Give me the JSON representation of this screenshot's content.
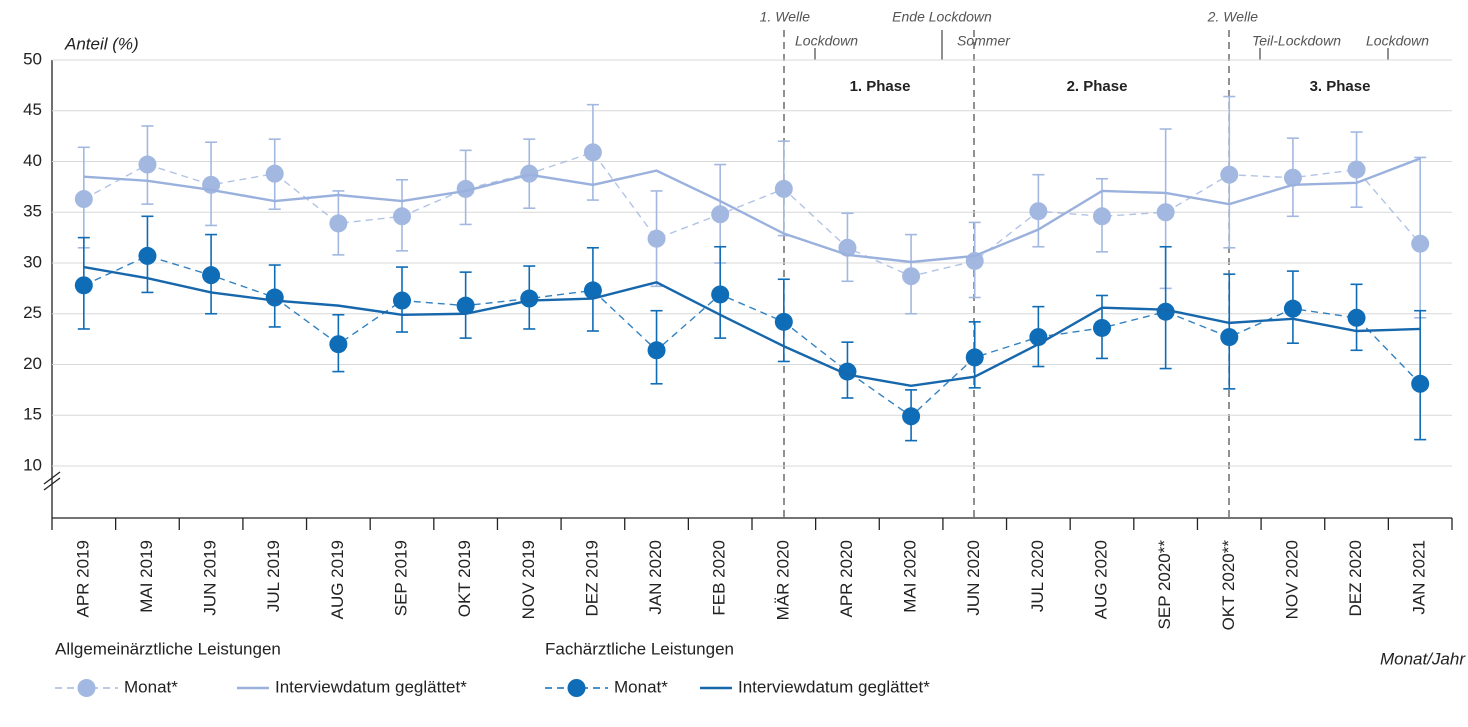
{
  "chart_data": {
    "type": "line",
    "y_label": "Anteil (%)",
    "x_label": "Monat/Jahr",
    "categories": [
      "APR 2019",
      "MAI 2019",
      "JUN 2019",
      "JUL 2019",
      "AUG 2019",
      "SEP 2019",
      "OKT 2019",
      "NOV 2019",
      "DEZ 2019",
      "JAN 2020",
      "FEB 2020",
      "MÄR 2020",
      "APR 2020",
      "MAI 2020",
      "JUN 2020",
      "JUL 2020",
      "AUG 2020",
      "SEP 2020**",
      "OKT 2020**",
      "NOV 2020",
      "DEZ 2020",
      "JAN 2021"
    ],
    "ylim": [
      5,
      50
    ],
    "yticks": [
      10,
      15,
      20,
      25,
      30,
      35,
      40,
      45,
      50
    ],
    "grid": true,
    "annotations": [
      "1. Welle",
      "Lockdown",
      "Ende Lockdown",
      "Sommer",
      "2. Welle",
      "Teil-Lockdown",
      "Lockdown"
    ],
    "phases": [
      "1. Phase",
      "2. Phase",
      "3. Phase"
    ],
    "groups": [
      {
        "name": "Allgemeinärztliche Leistungen",
        "series": [
          {
            "name": "Monat*",
            "color": "#a3b8e0",
            "line_style": "dashed",
            "marker": true,
            "values": [
              36.3,
              39.7,
              37.7,
              38.8,
              33.9,
              34.6,
              37.3,
              38.8,
              40.9,
              32.4,
              34.8,
              37.3,
              31.5,
              28.7,
              30.2,
              35.1,
              34.6,
              35.0,
              38.7,
              38.4,
              39.2,
              31.9
            ],
            "lower": [
              31.5,
              35.8,
              33.7,
              35.3,
              30.8,
              31.2,
              33.8,
              35.4,
              36.2,
              27.7,
              30.0,
              32.7,
              28.2,
              25.0,
              26.6,
              31.6,
              31.1,
              27.5,
              31.5,
              34.6,
              35.5,
              24.6
            ],
            "upper": [
              41.4,
              43.5,
              41.9,
              42.2,
              37.1,
              38.2,
              41.1,
              42.2,
              45.6,
              37.1,
              39.7,
              42.0,
              34.9,
              32.8,
              34.0,
              38.7,
              38.3,
              43.2,
              46.4,
              42.3,
              42.9,
              40.4
            ]
          },
          {
            "name": "Interviewdatum geglättet*",
            "color": "#9ab1dd",
            "line_style": "solid",
            "marker": false,
            "values": [
              38.5,
              38.1,
              37.2,
              36.1,
              36.7,
              36.1,
              37.1,
              38.7,
              37.7,
              39.1,
              36.1,
              32.9,
              30.8,
              30.1,
              30.7,
              33.3,
              37.1,
              36.9,
              35.8,
              37.7,
              37.9,
              40.3
            ]
          }
        ]
      },
      {
        "name": "Fachärztliche Leistungen",
        "series": [
          {
            "name": "Monat*",
            "color": "#0f6cb6",
            "line_style": "dashed",
            "marker": true,
            "values": [
              27.8,
              30.7,
              28.8,
              26.6,
              22.0,
              26.3,
              25.8,
              26.5,
              27.3,
              21.4,
              26.9,
              24.2,
              19.3,
              14.9,
              20.7,
              22.7,
              23.6,
              25.2,
              22.7,
              25.5,
              24.6,
              18.1
            ],
            "lower": [
              23.5,
              27.1,
              25.0,
              23.7,
              19.3,
              23.2,
              22.6,
              23.5,
              23.3,
              18.1,
              22.6,
              20.3,
              16.7,
              12.5,
              17.7,
              19.8,
              20.6,
              19.6,
              17.6,
              22.1,
              21.4,
              12.6
            ],
            "upper": [
              32.5,
              34.6,
              32.8,
              29.8,
              24.9,
              29.6,
              29.1,
              29.7,
              31.5,
              25.3,
              31.6,
              28.4,
              22.2,
              17.5,
              24.2,
              25.7,
              26.8,
              31.6,
              28.9,
              29.2,
              27.9,
              25.3
            ]
          },
          {
            "name": "Interviewdatum geglättet*",
            "color": "#1767ac",
            "line_style": "solid",
            "marker": false,
            "values": [
              29.6,
              28.5,
              27.1,
              26.3,
              25.8,
              24.9,
              25.0,
              26.3,
              26.5,
              28.1,
              24.9,
              21.8,
              19.0,
              17.9,
              18.8,
              22.0,
              25.6,
              25.4,
              24.1,
              24.5,
              23.3,
              23.5
            ]
          }
        ]
      }
    ]
  }
}
